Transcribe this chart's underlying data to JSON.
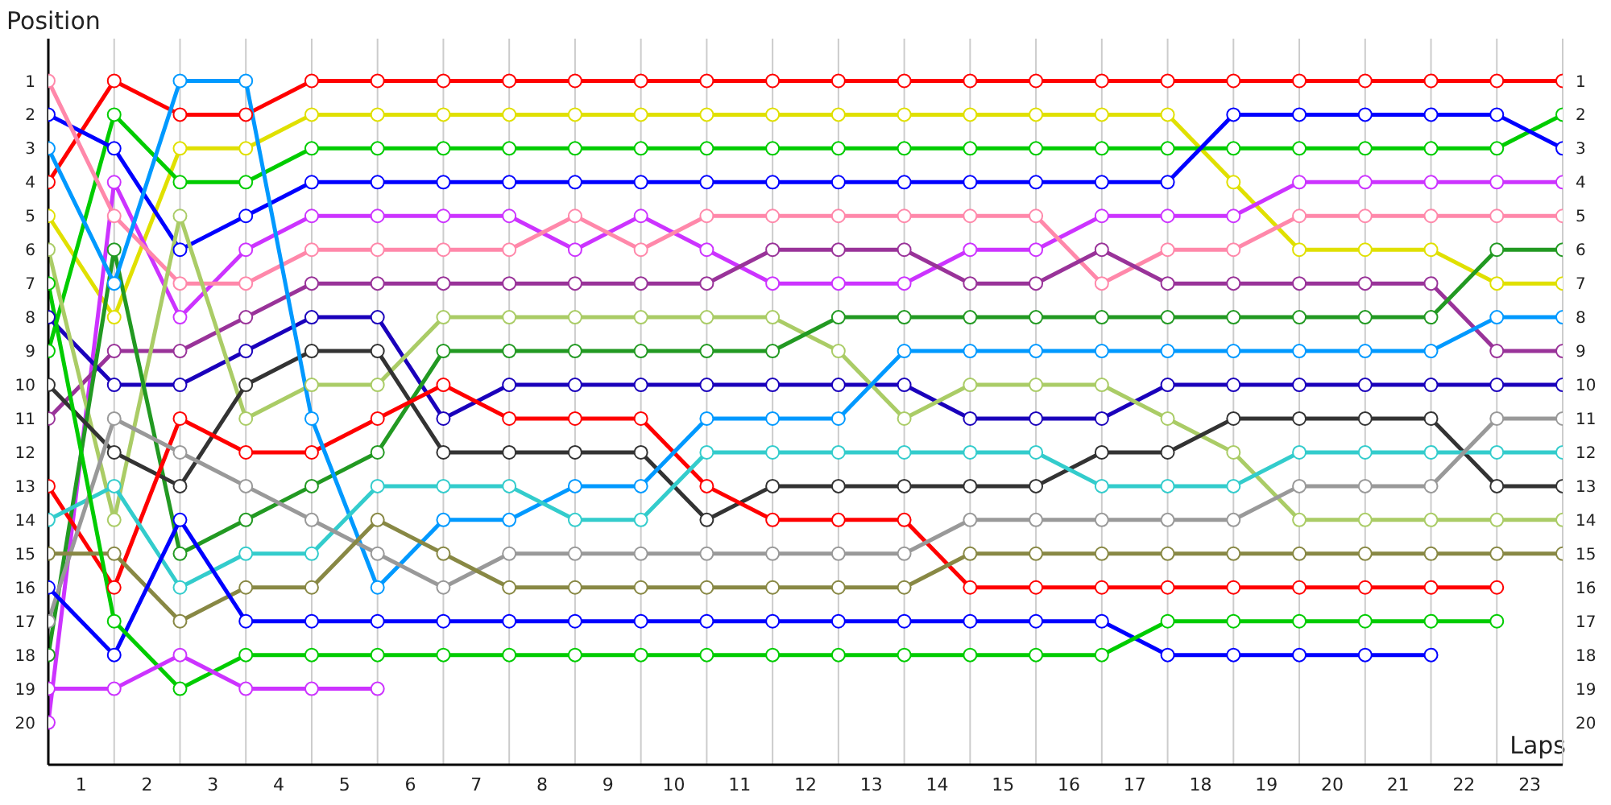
{
  "chart_data": {
    "type": "line",
    "xlabel": "Laps",
    "ylabel": "Position",
    "x": [
      0,
      1,
      2,
      3,
      4,
      5,
      6,
      7,
      8,
      9,
      10,
      11,
      12,
      13,
      14,
      15,
      16,
      17,
      18,
      19,
      20,
      21,
      22,
      23
    ],
    "xlim": [
      0,
      23
    ],
    "xticks": [
      {
        "value": 0.5,
        "label": "1"
      },
      {
        "value": 1.5,
        "label": "2"
      },
      {
        "value": 2.5,
        "label": "3"
      },
      {
        "value": 3.5,
        "label": "4"
      },
      {
        "value": 4.5,
        "label": "5"
      },
      {
        "value": 5.5,
        "label": "6"
      },
      {
        "value": 6.5,
        "label": "7"
      },
      {
        "value": 7.5,
        "label": "8"
      },
      {
        "value": 8.5,
        "label": "9"
      },
      {
        "value": 9.5,
        "label": "10"
      },
      {
        "value": 10.5,
        "label": "11"
      },
      {
        "value": 11.5,
        "label": "12"
      },
      {
        "value": 12.5,
        "label": "13"
      },
      {
        "value": 13.5,
        "label": "14"
      },
      {
        "value": 14.5,
        "label": "15"
      },
      {
        "value": 15.5,
        "label": "16"
      },
      {
        "value": 16.5,
        "label": "17"
      },
      {
        "value": 17.5,
        "label": "18"
      },
      {
        "value": 18.5,
        "label": "19"
      },
      {
        "value": 19.5,
        "label": "20"
      },
      {
        "value": 20.5,
        "label": "21"
      },
      {
        "value": 21.5,
        "label": "22"
      },
      {
        "value": 22.5,
        "label": "23"
      },
      {
        "value": 1,
        "label": null
      },
      {
        "value": 2,
        "label": null
      },
      {
        "value": 3,
        "label": null
      },
      {
        "value": 4,
        "label": null
      },
      {
        "value": 5,
        "label": null
      },
      {
        "value": 6,
        "label": null
      },
      {
        "value": 7,
        "label": null
      },
      {
        "value": 8,
        "label": null
      },
      {
        "value": 9,
        "label": null
      },
      {
        "value": 10,
        "label": null
      },
      {
        "value": 11,
        "label": null
      },
      {
        "value": 12,
        "label": null
      },
      {
        "value": 13,
        "label": null
      },
      {
        "value": 14,
        "label": null
      },
      {
        "value": 15,
        "label": null
      },
      {
        "value": 16,
        "label": null
      },
      {
        "value": 17,
        "label": null
      },
      {
        "value": 18,
        "label": null
      },
      {
        "value": 19,
        "label": null
      },
      {
        "value": 20,
        "label": null
      },
      {
        "value": 21,
        "label": null
      },
      {
        "value": 22,
        "label": null
      },
      {
        "value": 23,
        "label": null
      }
    ],
    "ylim": [
      21.25,
      -0.25
    ],
    "yticks": [
      1,
      2,
      3,
      4,
      5,
      6,
      7,
      8,
      9,
      10,
      11,
      12,
      13,
      14,
      15,
      16,
      17,
      18,
      19,
      20
    ],
    "y2lim": [
      21.25,
      -0.25
    ],
    "y2ticks": [
      1,
      2,
      3,
      4,
      5,
      6,
      7,
      8,
      9,
      10,
      11,
      12,
      13,
      14,
      15,
      16,
      17,
      18,
      19,
      20
    ],
    "grid": true,
    "legend": false,
    "marker": "circle",
    "line_style": "solid",
    "series": [
      {
        "color": "#ff0000",
        "values": [
          4,
          1,
          2,
          2,
          1,
          1,
          1,
          1,
          1,
          1,
          1,
          1,
          1,
          1,
          1,
          1,
          1,
          1,
          1,
          1,
          1,
          1,
          1,
          1
        ]
      },
      {
        "color": "#e0e000",
        "values": [
          5,
          8,
          3,
          3,
          2,
          2,
          2,
          2,
          2,
          2,
          2,
          2,
          2,
          2,
          2,
          2,
          2,
          2,
          4,
          6,
          6,
          6,
          7,
          7
        ]
      },
      {
        "color": "#00cc00",
        "values": [
          9,
          2,
          4,
          4,
          3,
          3,
          3,
          3,
          3,
          3,
          3,
          3,
          3,
          3,
          3,
          3,
          3,
          3,
          3,
          3,
          3,
          3,
          3,
          2
        ]
      },
      {
        "color": "#0000ff",
        "values": [
          2,
          3,
          6,
          5,
          4,
          4,
          4,
          4,
          4,
          4,
          4,
          4,
          4,
          4,
          4,
          4,
          4,
          4,
          2,
          2,
          2,
          2,
          2,
          3
        ]
      },
      {
        "color": "#cc33ff",
        "values": [
          20,
          4,
          8,
          6,
          5,
          5,
          5,
          5,
          6,
          5,
          6,
          7,
          7,
          7,
          6,
          6,
          5,
          5,
          5,
          4,
          4,
          4,
          4,
          4
        ]
      },
      {
        "color": "#ff88aa",
        "values": [
          1,
          5,
          7,
          7,
          6,
          6,
          6,
          6,
          5,
          6,
          5,
          5,
          5,
          5,
          5,
          5,
          7,
          6,
          6,
          5,
          5,
          5,
          5,
          5
        ]
      },
      {
        "color": "#993399",
        "values": [
          11,
          9,
          9,
          8,
          7,
          7,
          7,
          7,
          7,
          7,
          7,
          6,
          6,
          6,
          7,
          7,
          6,
          7,
          7,
          7,
          7,
          7,
          9,
          9
        ]
      },
      {
        "color": "#1a00bb",
        "values": [
          8,
          10,
          10,
          9,
          8,
          8,
          11,
          10,
          10,
          10,
          10,
          10,
          10,
          10,
          11,
          11,
          11,
          10,
          10,
          10,
          10,
          10,
          10,
          10
        ]
      },
      {
        "color": "#aacc66",
        "values": [
          6,
          14,
          5,
          11,
          10,
          10,
          8,
          8,
          8,
          8,
          8,
          8,
          9,
          11,
          10,
          10,
          10,
          11,
          12,
          14,
          14,
          14,
          14,
          14
        ]
      },
      {
        "color": "#229922",
        "values": [
          18,
          6,
          15,
          14,
          13,
          12,
          9,
          9,
          9,
          9,
          9,
          9,
          8,
          8,
          8,
          8,
          8,
          8,
          8,
          8,
          8,
          8,
          6,
          6
        ]
      },
      {
        "color": "#333333",
        "values": [
          10,
          12,
          13,
          10,
          9,
          9,
          12,
          12,
          12,
          12,
          14,
          13,
          13,
          13,
          13,
          13,
          12,
          12,
          11,
          11,
          11,
          11,
          13,
          13
        ]
      },
      {
        "color": "#ff0000",
        "values": [
          13,
          16,
          11,
          12,
          12,
          11,
          10,
          11,
          11,
          11,
          13,
          14,
          14,
          14,
          16,
          16,
          16,
          16,
          16,
          16,
          16,
          16,
          16,
          null
        ]
      },
      {
        "color": "#0099ff",
        "values": [
          3,
          7,
          1,
          1,
          11,
          16,
          14,
          14,
          13,
          13,
          11,
          11,
          11,
          9,
          9,
          9,
          9,
          9,
          9,
          9,
          9,
          9,
          8,
          8
        ]
      },
      {
        "color": "#33cccc",
        "values": [
          14,
          13,
          16,
          15,
          15,
          13,
          13,
          13,
          14,
          14,
          12,
          12,
          12,
          12,
          12,
          12,
          13,
          13,
          13,
          12,
          12,
          12,
          12,
          12
        ]
      },
      {
        "color": "#999999",
        "values": [
          17,
          11,
          12,
          13,
          14,
          15,
          16,
          15,
          15,
          15,
          15,
          15,
          15,
          15,
          14,
          14,
          14,
          14,
          14,
          13,
          13,
          13,
          11,
          11
        ]
      },
      {
        "color": "#888844",
        "values": [
          15,
          15,
          17,
          16,
          16,
          14,
          15,
          16,
          16,
          16,
          16,
          16,
          16,
          16,
          15,
          15,
          15,
          15,
          15,
          15,
          15,
          15,
          15,
          15
        ]
      },
      {
        "color": "#0000ff",
        "values": [
          16,
          18,
          14,
          17,
          17,
          17,
          17,
          17,
          17,
          17,
          17,
          17,
          17,
          17,
          17,
          17,
          17,
          18,
          18,
          18,
          18,
          18,
          null,
          null
        ]
      },
      {
        "color": "#00cc00",
        "values": [
          7,
          17,
          19,
          18,
          18,
          18,
          18,
          18,
          18,
          18,
          18,
          18,
          18,
          18,
          18,
          18,
          18,
          17,
          17,
          17,
          17,
          17,
          17,
          null
        ]
      },
      {
        "color": "#cc33ff",
        "values": [
          19,
          19,
          18,
          19,
          19,
          19,
          null,
          null,
          null,
          null,
          null,
          null,
          null,
          null,
          null,
          null,
          null,
          null,
          null,
          null,
          null,
          null,
          null,
          null
        ]
      }
    ]
  }
}
